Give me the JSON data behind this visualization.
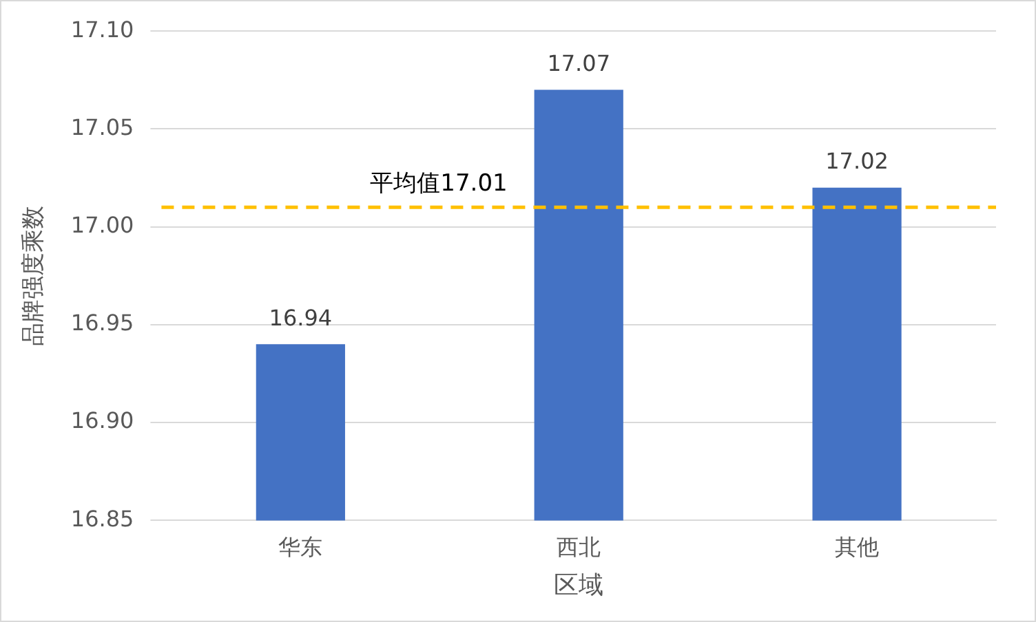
{
  "chart_data": {
    "type": "bar",
    "xlabel": "区域",
    "ylabel": "品牌强度乘数",
    "categories": [
      "华东",
      "西北",
      "其他"
    ],
    "values": [
      16.94,
      17.07,
      17.02
    ],
    "color": "#4472c4",
    "data_labels": true,
    "ylim": [
      16.85,
      17.1
    ],
    "yticks": [
      16.85,
      {
        "value": 16.9,
        "label": "16.90"
      },
      16.95,
      {
        "value": 17.0,
        "label": "17.00"
      },
      17.05,
      {
        "value": 17.1,
        "label": "17.10"
      }
    ],
    "grid": "y",
    "legend": false,
    "ref_lines": [
      {
        "axis": "y",
        "value": 17.01,
        "label": "平均值17.01",
        "color": "#ffc000",
        "line_style": "dashed"
      }
    ]
  }
}
